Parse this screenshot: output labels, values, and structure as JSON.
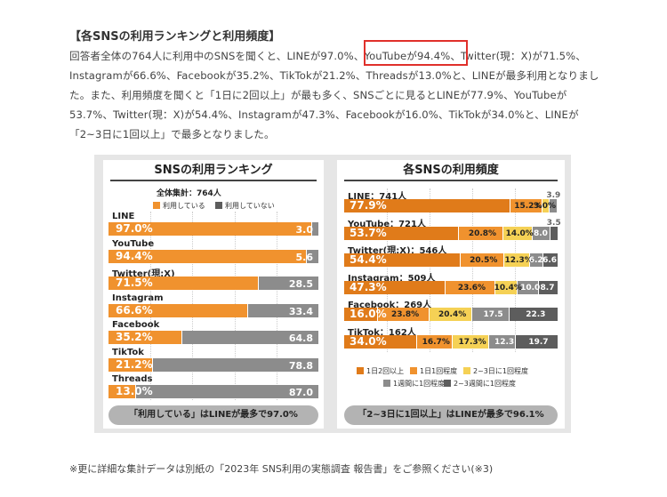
{
  "heading": "【各SNSの利用ランキングと利用頻度】",
  "paragraph": "回答者全体の764人に利用中のSNSを聞くと、LINEが97.0%、YouTubeが94.4%、Twitter(現：X)が71.5%、Instagramが66.6%、Facebookが35.2%、TikTokが21.2%、Threadsが13.0%と、LINEが最多利用となりました。また、利用頻度を聞くと「1日に2回以上」が最も多く、SNSごとに見るとLINEが77.9%、YouTubeが53.7%、Twitter(現：X)が54.4%、Instagramが47.3%、Facebookが16.0%、TikTokが34.0%と、LINEが「2~3日に1回以上」で最多となりました。",
  "highlight_text": "YouTubeが94.4%",
  "note": "※更に詳細な集計データは別紙の「2023年 SNS利用の実態調査 報告書」をご参照ください(※3)",
  "colors": {
    "orange": "#f0922e",
    "dark_orange": "#e07b1a",
    "yellow": "#f5d155",
    "gray": "#8c8c8c",
    "dark_gray": "#5d5d5d",
    "footer": "#b3b3b3"
  },
  "chart_data": [
    {
      "type": "bar",
      "title": "SNSの利用ランキング",
      "subtitle": "全体集計：764人",
      "categories": [
        "LINE",
        "YouTube",
        "Twitter(現:X)",
        "Instagram",
        "Facebook",
        "TikTok",
        "Threads"
      ],
      "series": [
        {
          "name": "利用している",
          "values": [
            97.0,
            94.4,
            71.5,
            66.6,
            35.2,
            21.2,
            13.0
          ]
        },
        {
          "name": "利用していない",
          "values": [
            3.0,
            5.6,
            28.5,
            33.4,
            64.8,
            78.8,
            87.0
          ]
        }
      ],
      "value_labels": {
        "used": [
          "97.0%",
          "94.4%",
          "71.5%",
          "66.6%",
          "35.2%",
          "21.2%",
          "13.0%"
        ],
        "not_used": [
          "3.0",
          "5.6",
          "28.5",
          "33.4",
          "64.8",
          "78.8",
          "87.0"
        ]
      },
      "stacked": true,
      "xlim": [
        0,
        100
      ],
      "legend_position": "top",
      "footer": "「利用している」はLINEが最多で97.0%"
    },
    {
      "type": "bar",
      "title": "各SNSの利用頻度",
      "categories": [
        "LINE：741人",
        "YouTube：721人",
        "Twitter(現:X)：546人",
        "Instagram：509人",
        "Facebook：269人",
        "TikTok：162人"
      ],
      "series": [
        {
          "name": "1日2回以上",
          "values": [
            77.9,
            53.7,
            54.4,
            47.3,
            16.0,
            34.0
          ]
        },
        {
          "name": "1日1回程度",
          "values": [
            15.2,
            20.8,
            20.5,
            23.6,
            23.8,
            16.7
          ]
        },
        {
          "name": "2~3日に1回程度",
          "values": [
            3.0,
            14.0,
            12.3,
            10.4,
            20.4,
            17.3
          ]
        },
        {
          "name": "1週間に1回程度",
          "values": [
            3.9,
            8.0,
            6.2,
            10.0,
            17.5,
            12.3
          ]
        },
        {
          "name": "2~3週間に1回程度",
          "values": [
            0,
            3.5,
            6.6,
            8.7,
            22.3,
            19.7
          ]
        }
      ],
      "value_labels": [
        [
          "77.9%",
          "15.2%",
          "3.0%",
          "3.9",
          ""
        ],
        [
          "53.7%",
          "20.8%",
          "14.0%",
          "8.0",
          "3.5"
        ],
        [
          "54.4%",
          "20.5%",
          "12.3%",
          "6.2",
          "6.6"
        ],
        [
          "47.3%",
          "23.6%",
          "10.4%",
          "10.0",
          "8.7"
        ],
        [
          "16.0%",
          "23.8%",
          "20.4%",
          "17.5",
          "22.3"
        ],
        [
          "34.0%",
          "16.7%",
          "17.3%",
          "12.3",
          "19.7"
        ]
      ],
      "stacked": true,
      "xlim": [
        0,
        100
      ],
      "legend_position": "bottom",
      "footer": "「2~3日に1回以上」はLINEが最多で96.1%"
    }
  ]
}
